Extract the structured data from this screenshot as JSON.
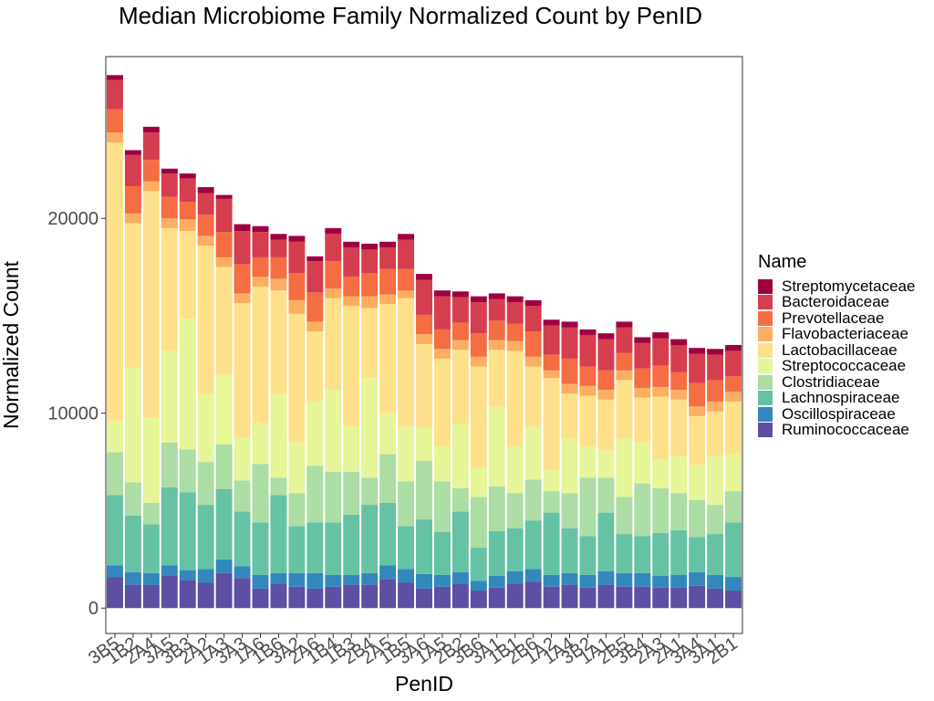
{
  "chart_data": {
    "type": "bar",
    "stacked": true,
    "title": "Median Microbiome Family Normalized Count by PenID",
    "xlabel": "PenID",
    "ylabel": "Normalized Count",
    "ylim": [
      -1300,
      28300
    ],
    "yticks": [
      0,
      10000,
      20000
    ],
    "ytick_labels": [
      "0",
      "10000",
      "20000"
    ],
    "legend_title": "Name",
    "legend_position": "right",
    "categories": [
      "3B5",
      "1B2",
      "2A4",
      "3A5",
      "3B3",
      "2A2",
      "1A3",
      "3A3",
      "1A6",
      "1B6",
      "3A2",
      "2A6",
      "1B4",
      "1B3",
      "2B4",
      "2A5",
      "1B5",
      "3A6",
      "1A5",
      "2B2",
      "3B6",
      "3A1",
      "1B1",
      "2B6",
      "1A2",
      "1A4",
      "3B2",
      "1A1",
      "2B5",
      "3B4",
      "2A3",
      "2A1",
      "3A4",
      "3A1",
      "2B1"
    ],
    "series": [
      {
        "name": "Ruminococcaceae",
        "color": "#5e4fa2",
        "values": [
          1600,
          1200,
          1200,
          1650,
          1450,
          1300,
          1800,
          1550,
          1000,
          1250,
          1100,
          1000,
          1100,
          1200,
          1200,
          1500,
          1300,
          1000,
          1100,
          1250,
          900,
          1050,
          1250,
          1350,
          1100,
          1200,
          1050,
          1200,
          1100,
          1100,
          1050,
          1050,
          1150,
          1000,
          900
        ]
      },
      {
        "name": "Oscillospiraceae",
        "color": "#3288bd",
        "values": [
          600,
          650,
          600,
          550,
          500,
          700,
          700,
          600,
          700,
          550,
          700,
          800,
          600,
          500,
          600,
          700,
          700,
          750,
          600,
          600,
          500,
          600,
          650,
          650,
          600,
          600,
          650,
          700,
          700,
          700,
          600,
          650,
          700,
          700,
          700
        ]
      },
      {
        "name": "Lachnospiraceae",
        "color": "#66c2a5",
        "values": [
          3600,
          2900,
          2500,
          4000,
          4000,
          3300,
          3600,
          2800,
          2700,
          4000,
          2400,
          2600,
          2700,
          3100,
          3500,
          3200,
          2200,
          2800,
          2200,
          3100,
          1700,
          2300,
          2200,
          2500,
          3200,
          2300,
          2000,
          3000,
          2000,
          1900,
          2200,
          2300,
          1800,
          2100,
          2800
        ]
      },
      {
        "name": "Clostridiaceae",
        "color": "#abdda4",
        "values": [
          2200,
          1700,
          1100,
          2300,
          2200,
          2200,
          2300,
          1600,
          3000,
          900,
          1700,
          2900,
          2600,
          2200,
          1400,
          2500,
          2300,
          3000,
          2600,
          1200,
          2600,
          2300,
          1800,
          2100,
          1100,
          1800,
          3000,
          1800,
          1900,
          2700,
          2300,
          1900,
          1900,
          1500,
          1600
        ]
      },
      {
        "name": "Streptococcaceae",
        "color": "#e6f598",
        "values": [
          1600,
          5900,
          4400,
          4700,
          6700,
          3500,
          3600,
          2200,
          2100,
          4300,
          2600,
          3300,
          4200,
          2300,
          5100,
          2100,
          2800,
          1700,
          1800,
          3300,
          1500,
          4100,
          2400,
          2700,
          1100,
          2800,
          1600,
          1400,
          3000,
          2100,
          1500,
          1900,
          1800,
          2500,
          1900
        ]
      },
      {
        "name": "Lactobacillaceae",
        "color": "#fee08b",
        "values": [
          14300,
          7400,
          11600,
          6300,
          4500,
          7600,
          5500,
          6900,
          7000,
          5300,
          6600,
          3600,
          4700,
          6200,
          3600,
          5600,
          6600,
          4300,
          4500,
          3800,
          5200,
          2900,
          4900,
          3100,
          4700,
          2300,
          2600,
          2600,
          3000,
          2300,
          3200,
          2900,
          2500,
          2300,
          2700
        ]
      },
      {
        "name": "Flavobacteriaceae",
        "color": "#fdae61",
        "values": [
          500,
          500,
          500,
          500,
          600,
          500,
          500,
          500,
          500,
          600,
          700,
          500,
          500,
          500,
          600,
          500,
          400,
          500,
          500,
          500,
          500,
          500,
          500,
          500,
          400,
          500,
          500,
          500,
          500,
          500,
          500,
          500,
          500,
          500,
          500
        ]
      },
      {
        "name": "Prevotellaceae",
        "color": "#f46d43",
        "values": [
          1200,
          1400,
          1100,
          1100,
          900,
          1100,
          1300,
          1500,
          1000,
          1100,
          1400,
          1500,
          1400,
          1000,
          1200,
          1300,
          1100,
          1000,
          1000,
          900,
          1200,
          1000,
          900,
          1300,
          800,
          1300,
          1000,
          1000,
          900,
          1000,
          1100,
          900,
          1200,
          1100,
          800
        ]
      },
      {
        "name": "Bacteroidaceae",
        "color": "#d53e4f",
        "values": [
          1500,
          1600,
          1400,
          1200,
          1200,
          1100,
          1700,
          1700,
          1300,
          900,
          1600,
          1600,
          1400,
          1500,
          1200,
          1100,
          1500,
          1800,
          1700,
          1300,
          1600,
          1100,
          1100,
          1300,
          1500,
          1600,
          1600,
          1600,
          1300,
          1300,
          1400,
          1400,
          1500,
          1300,
          1300
        ]
      },
      {
        "name": "Streptomycetaceae",
        "color": "#9e0142",
        "values": [
          250,
          250,
          300,
          250,
          250,
          300,
          200,
          350,
          300,
          300,
          300,
          250,
          300,
          300,
          300,
          300,
          300,
          300,
          300,
          300,
          300,
          300,
          300,
          300,
          300,
          300,
          300,
          300,
          300,
          300,
          300,
          300,
          300,
          300,
          300
        ]
      }
    ]
  }
}
